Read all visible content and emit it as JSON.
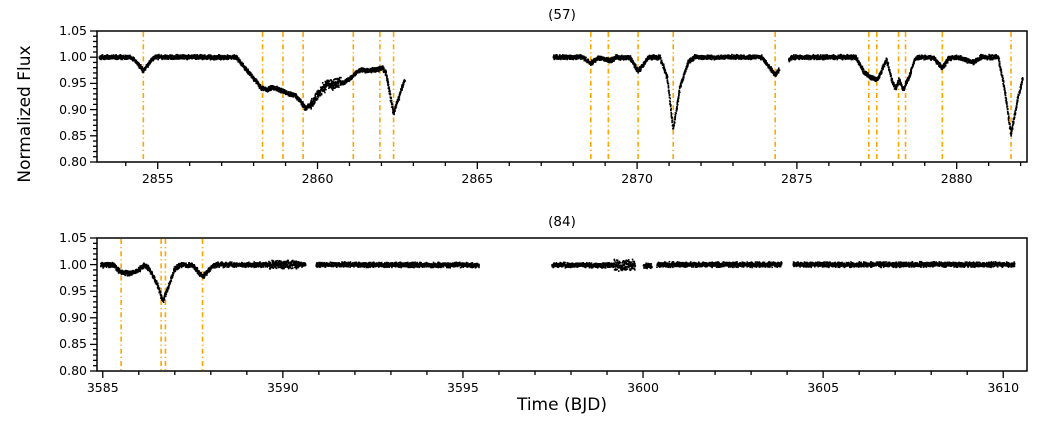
{
  "figure": {
    "background": "#ffffff",
    "marker_color": "#000000",
    "event_line_color": "#ffa500",
    "axis_color": "#000000",
    "xlabel": "Time (BJD)",
    "ylabel": "Normalized Flux"
  },
  "chart_data": [
    {
      "type": "scatter",
      "title": "(57)",
      "xlabel": "Time (BJD)",
      "ylabel": "Normalized Flux",
      "xlim": [
        2853.1,
        2882.2
      ],
      "ylim": [
        0.8,
        1.05
      ],
      "xticks": [
        2855,
        2860,
        2865,
        2870,
        2875,
        2880
      ],
      "xtick_labels": [
        "2855",
        "2860",
        "2865",
        "2870",
        "2875",
        "2880"
      ],
      "yticks": [
        0.8,
        0.85,
        0.9,
        0.95,
        1.0,
        1.05
      ],
      "ytick_labels": [
        "0.80",
        "0.85",
        "0.90",
        "0.95",
        "1.00",
        "1.05"
      ],
      "minor_x_step": 1,
      "minor_y_step": 0.01,
      "grid": false,
      "event_times": [
        2854.55,
        2858.28,
        2858.92,
        2859.55,
        2861.12,
        2861.95,
        2862.38,
        2868.55,
        2869.1,
        2870.03,
        2871.13,
        2874.32,
        2877.25,
        2877.5,
        2878.18,
        2878.4,
        2879.55,
        2881.7
      ],
      "sample_step": 0.0075,
      "segments": [
        {
          "noise": 0.0032,
          "noise_spans": [
            [
              2859.8,
              2860.75,
              0.007
            ]
          ],
          "keypoints": [
            [
              2853.18,
              1.0
            ],
            [
              2854.15,
              1.0
            ],
            [
              2854.3,
              0.993
            ],
            [
              2854.55,
              0.974
            ],
            [
              2854.8,
              0.994
            ],
            [
              2854.95,
              1.0
            ],
            [
              2857.45,
              1.0
            ],
            [
              2858.25,
              0.941
            ],
            [
              2858.45,
              0.938
            ],
            [
              2858.6,
              0.943
            ],
            [
              2858.8,
              0.938
            ],
            [
              2858.95,
              0.934
            ],
            [
              2859.1,
              0.93
            ],
            [
              2859.3,
              0.928
            ],
            [
              2859.5,
              0.913
            ],
            [
              2859.62,
              0.902
            ],
            [
              2859.78,
              0.909
            ],
            [
              2859.95,
              0.924
            ],
            [
              2860.15,
              0.94
            ],
            [
              2860.35,
              0.95
            ],
            [
              2860.5,
              0.946
            ],
            [
              2860.65,
              0.954
            ],
            [
              2860.8,
              0.95
            ],
            [
              2861.0,
              0.958
            ],
            [
              2861.2,
              0.97
            ],
            [
              2861.35,
              0.976
            ],
            [
              2861.6,
              0.974
            ],
            [
              2861.85,
              0.976
            ],
            [
              2862.05,
              0.979
            ],
            [
              2862.15,
              0.968
            ],
            [
              2862.38,
              0.893
            ],
            [
              2862.73,
              0.957
            ]
          ]
        },
        {
          "noise": 0.0032,
          "keypoints": [
            [
              2867.38,
              1.0
            ],
            [
              2868.3,
              1.0
            ],
            [
              2868.55,
              0.988
            ],
            [
              2868.8,
              0.999
            ],
            [
              2869.0,
              0.996
            ],
            [
              2869.15,
              0.993
            ],
            [
              2869.35,
              1.0
            ],
            [
              2869.8,
              0.998
            ],
            [
              2870.03,
              0.972
            ],
            [
              2870.35,
              0.999
            ],
            [
              2870.72,
              1.0
            ],
            [
              2870.95,
              0.96
            ],
            [
              2871.13,
              0.862
            ],
            [
              2871.35,
              0.944
            ],
            [
              2871.6,
              0.99
            ],
            [
              2871.8,
              1.0
            ],
            [
              2873.9,
              1.0
            ],
            [
              2874.1,
              0.984
            ],
            [
              2874.32,
              0.966
            ],
            [
              2874.45,
              0.976
            ]
          ]
        },
        {
          "noise": 0.0032,
          "keypoints": [
            [
              2874.75,
              0.995
            ],
            [
              2874.9,
              1.0
            ],
            [
              2876.85,
              1.0
            ],
            [
              2877.1,
              0.971
            ],
            [
              2877.3,
              0.961
            ],
            [
              2877.55,
              0.958
            ],
            [
              2877.8,
              0.997
            ],
            [
              2878.0,
              0.95
            ],
            [
              2878.1,
              0.94
            ],
            [
              2878.2,
              0.957
            ],
            [
              2878.33,
              0.938
            ],
            [
              2878.5,
              0.96
            ],
            [
              2878.7,
              0.997
            ],
            [
              2878.9,
              1.0
            ],
            [
              2879.3,
              0.998
            ],
            [
              2879.55,
              0.979
            ],
            [
              2879.75,
              0.998
            ],
            [
              2880.0,
              1.0
            ],
            [
              2880.55,
              0.99
            ],
            [
              2880.75,
              1.0
            ],
            [
              2881.3,
              1.0
            ],
            [
              2881.5,
              0.94
            ],
            [
              2881.7,
              0.852
            ],
            [
              2881.9,
              0.917
            ],
            [
              2882.08,
              0.962
            ]
          ]
        }
      ]
    },
    {
      "type": "scatter",
      "title": "(84)",
      "xlabel": "Time (BJD)",
      "ylabel": "Normalized Flux",
      "xlim": [
        3584.84,
        3610.66
      ],
      "ylim": [
        0.8,
        1.05
      ],
      "xticks": [
        3585,
        3590,
        3595,
        3600,
        3605,
        3610
      ],
      "xtick_labels": [
        "3585",
        "3590",
        "3595",
        "3600",
        "3605",
        "3610"
      ],
      "yticks": [
        0.8,
        0.85,
        0.9,
        0.95,
        1.0,
        1.05
      ],
      "ytick_labels": [
        "0.80",
        "0.85",
        "0.90",
        "0.95",
        "1.00",
        "1.05"
      ],
      "minor_x_step": 1,
      "minor_y_step": 0.01,
      "grid": false,
      "event_times": [
        3585.51,
        3586.62,
        3586.74,
        3587.77
      ],
      "sample_step": 0.007,
      "segments": [
        {
          "noise": 0.0035,
          "noise_spans": [
            [
              3589.6,
              3590.45,
              0.0055
            ]
          ],
          "keypoints": [
            [
              3584.95,
              0.999
            ],
            [
              3585.3,
              0.999
            ],
            [
              3585.5,
              0.985
            ],
            [
              3585.75,
              0.983
            ],
            [
              3585.95,
              0.988
            ],
            [
              3586.15,
              0.998
            ],
            [
              3586.3,
              0.992
            ],
            [
              3586.5,
              0.964
            ],
            [
              3586.67,
              0.932
            ],
            [
              3586.85,
              0.962
            ],
            [
              3587.0,
              0.992
            ],
            [
              3587.15,
              0.999
            ],
            [
              3587.5,
              0.999
            ],
            [
              3587.77,
              0.977
            ],
            [
              3588.05,
              0.997
            ],
            [
              3588.2,
              1.0
            ],
            [
              3590.63,
              1.0
            ]
          ]
        },
        {
          "noise": 0.0035,
          "keypoints": [
            [
              3590.93,
              1.0
            ],
            [
              3595.45,
              0.999
            ]
          ]
        },
        {
          "noise": 0.0035,
          "noise_spans": [
            [
              3599.2,
              3599.79,
              0.0075
            ]
          ],
          "keypoints": [
            [
              3597.48,
              0.999
            ],
            [
              3599.79,
              0.999
            ]
          ]
        },
        {
          "noise": 0.0035,
          "keypoints": [
            [
              3600.02,
              0.998
            ],
            [
              3600.25,
              0.998
            ]
          ]
        },
        {
          "noise": 0.0035,
          "keypoints": [
            [
              3600.39,
              1.0
            ],
            [
              3603.85,
              1.0
            ]
          ]
        },
        {
          "noise": 0.0035,
          "keypoints": [
            [
              3604.17,
              1.0
            ],
            [
              3610.32,
              1.0
            ]
          ]
        }
      ]
    }
  ]
}
